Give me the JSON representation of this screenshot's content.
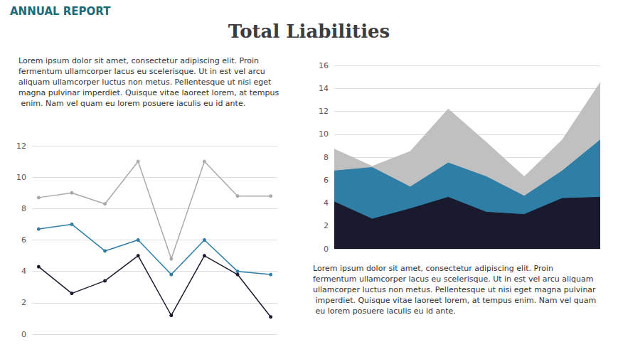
{
  "chart_data": [
    {
      "type": "line",
      "title": "Total Liabilities",
      "annotations": [
        "ANNUAL REPORT",
        "Lorem ipsum dolor sit amet, consectetur adipiscing elit. Proin fermentum ullamcorper lacus eu scelerisque. Ut in est vel arcu aliquam ullamcorper luctus non metus. Pellentesque ut nisi eget magna pulvinar imperdiet. Quisque vitae laoreet lorem, at tempus enim. Nam vel quam eu lorem posuere iaculis eu id ante."
      ],
      "x": [
        0,
        1,
        2,
        3,
        4,
        5,
        6,
        7
      ],
      "series": [
        {
          "color": "#aaaaaa",
          "values": [
            8.7,
            9.0,
            8.3,
            11.0,
            4.8,
            11.0,
            8.8,
            8.8
          ]
        },
        {
          "color": "#2e7ea6",
          "values": [
            6.7,
            7.0,
            5.3,
            6.0,
            3.8,
            6.0,
            4.0,
            3.8
          ]
        },
        {
          "color": "#1a1a2e",
          "values": [
            4.3,
            2.6,
            3.4,
            5.0,
            1.2,
            5.0,
            3.8,
            1.1
          ]
        }
      ],
      "xlim": [
        -0.2,
        7.2
      ],
      "ylim": [
        0,
        12
      ],
      "yticks": [
        0,
        2,
        4,
        6,
        8,
        10,
        12
      ],
      "grid": true,
      "tick_labels": "y",
      "marker": "circle"
    },
    {
      "type": "area",
      "annotations": [
        "Lorem ipsum dolor sit amet, consectetur adipiscing elit. Proin fermentum ullamcorper lacus eu scelerisque. Ut in est vel arcu aliquam ullamcorper luctus non metus. Pellentesque ut nisi eget magna pulvinar imperdiet. Quisque vitae laoreet lorem, at tempus enim. Nam vel quam eu lorem posuere iaculis eu id ante."
      ],
      "x": [
        0,
        1,
        2,
        3,
        4,
        5,
        6,
        7
      ],
      "series": [
        {
          "color": "#c0c0c0",
          "values": [
            8.7,
            7.2,
            8.5,
            12.2,
            9.3,
            6.3,
            9.5,
            14.5
          ]
        },
        {
          "color": "#2e7ea6",
          "values": [
            6.8,
            7.1,
            5.4,
            7.5,
            6.3,
            4.6,
            6.8,
            9.5
          ]
        },
        {
          "color": "#1a1a2e",
          "values": [
            4.1,
            2.6,
            3.5,
            4.5,
            3.2,
            3.0,
            4.4,
            4.5
          ]
        }
      ],
      "xlim": [
        0,
        7
      ],
      "ylim": [
        0,
        16
      ],
      "yticks": [
        0,
        2,
        4,
        6,
        8,
        10,
        12,
        14,
        16
      ],
      "grid": true,
      "tick_labels": "y"
    }
  ]
}
